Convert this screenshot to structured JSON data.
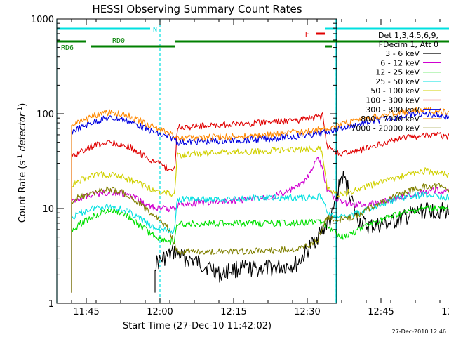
{
  "chart_data": {
    "type": "line",
    "title": "HESSI Observing Summary Count Rates",
    "xlabel": "Start Time (27-Dec-10 11:42:02)",
    "ylabel_main": "Count Rate (s",
    "ylabel_sup1": "-1",
    "ylabel_mid": " detector",
    "ylabel_sup2": "-1",
    "ylabel_end": ")",
    "yscale": "log",
    "xlim_min": [
      -3,
      54
    ],
    "ylim": [
      1,
      1000
    ],
    "x_ticks": [
      {
        "min": 3,
        "label": "11:45"
      },
      {
        "min": 18,
        "label": "12:00"
      },
      {
        "min": 33,
        "label": "12:15"
      },
      {
        "min": 48,
        "label": "12:30"
      },
      {
        "min": 63,
        "label": "12:45"
      },
      {
        "min": 78,
        "label": "13:00"
      },
      {
        "min": 93,
        "label": "13:15"
      }
    ],
    "y_ticks": [
      {
        "value": 1,
        "label": "1"
      },
      {
        "value": 10,
        "label": "10"
      },
      {
        "value": 100,
        "label": "100"
      },
      {
        "value": 1000,
        "label": "1000"
      }
    ],
    "legend_header": [
      "Det 1,3,4,5,6,9,",
      "FDecim 1, Att 0"
    ],
    "series": [
      {
        "name": "3 - 6 keV",
        "color": "#000000",
        "points": [
          [
            17,
            2.6
          ],
          [
            19,
            3
          ],
          [
            21,
            3.5
          ],
          [
            23,
            3
          ],
          [
            25,
            2.8
          ],
          [
            27,
            2.5
          ],
          [
            29,
            2.3
          ],
          [
            30,
            2
          ],
          [
            31,
            2
          ],
          [
            31.5,
            2.2
          ],
          [
            34,
            2.3
          ],
          [
            38,
            2.3
          ],
          [
            42,
            2.4
          ],
          [
            46,
            2.6
          ],
          [
            50,
            5
          ],
          [
            53,
            8
          ],
          [
            55,
            22
          ],
          [
            56,
            18
          ],
          [
            57,
            13
          ],
          [
            58,
            8
          ],
          [
            60,
            6.5
          ],
          [
            62,
            6.5
          ],
          [
            65,
            7
          ],
          [
            68,
            8
          ],
          [
            70,
            9
          ],
          [
            72,
            9.5
          ],
          [
            75,
            9.5
          ],
          [
            78,
            9
          ],
          [
            80,
            8
          ],
          [
            83,
            6
          ],
          [
            86,
            4.5
          ],
          [
            88,
            3.2
          ]
        ]
      },
      {
        "name": "6 - 12 keV",
        "color": "#d000d0",
        "points": [
          [
            0,
            12
          ],
          [
            2,
            13
          ],
          [
            4,
            14
          ],
          [
            6,
            14.5
          ],
          [
            8,
            15
          ],
          [
            10,
            14.5
          ],
          [
            12,
            13.5
          ],
          [
            14,
            12
          ],
          [
            16,
            10.5
          ],
          [
            18,
            10
          ],
          [
            20,
            10
          ],
          [
            21,
            10
          ],
          [
            21.5,
            11
          ],
          [
            26,
            11.5
          ],
          [
            31,
            11.8
          ],
          [
            36,
            12.5
          ],
          [
            41,
            13.5
          ],
          [
            44,
            15
          ],
          [
            47,
            18
          ],
          [
            49,
            25
          ],
          [
            50,
            35
          ],
          [
            51,
            28
          ],
          [
            52,
            16
          ],
          [
            54,
            12
          ],
          [
            57,
            11
          ],
          [
            60,
            11
          ],
          [
            62,
            11.5
          ],
          [
            65,
            12.5
          ],
          [
            68,
            13.5
          ],
          [
            71,
            14.5
          ],
          [
            74,
            15.5
          ],
          [
            77,
            15
          ],
          [
            80,
            14
          ],
          [
            82,
            12.5
          ],
          [
            84,
            11
          ]
        ]
      },
      {
        "name": "12 - 25 keV",
        "color": "#00e000",
        "points": [
          [
            0,
            6
          ],
          [
            2,
            7
          ],
          [
            4,
            8
          ],
          [
            6,
            9
          ],
          [
            8,
            9.5
          ],
          [
            10,
            9
          ],
          [
            12,
            8
          ],
          [
            14,
            6.5
          ],
          [
            16,
            5.5
          ],
          [
            18,
            4.8
          ],
          [
            20,
            4.5
          ],
          [
            21,
            4.5
          ],
          [
            21.5,
            6.8
          ],
          [
            30,
            7
          ],
          [
            40,
            7
          ],
          [
            46,
            7.1
          ],
          [
            51,
            7.3
          ],
          [
            52,
            6.5
          ],
          [
            55,
            5
          ],
          [
            57,
            5.5
          ],
          [
            60,
            6.5
          ],
          [
            63,
            7.5
          ],
          [
            66,
            8.5
          ],
          [
            69,
            9.2
          ],
          [
            72,
            10
          ],
          [
            75,
            10
          ],
          [
            78,
            9
          ],
          [
            80,
            8
          ],
          [
            82,
            6.5
          ],
          [
            84,
            5.5
          ]
        ]
      },
      {
        "name": "25 - 50 keV",
        "color": "#00e0e0",
        "points": [
          [
            0,
            8
          ],
          [
            2,
            9
          ],
          [
            4,
            10
          ],
          [
            6,
            10.5
          ],
          [
            8,
            10.5
          ],
          [
            10,
            10
          ],
          [
            12,
            9
          ],
          [
            14,
            7.8
          ],
          [
            16,
            6.5
          ],
          [
            18,
            6
          ],
          [
            20,
            5.8
          ],
          [
            21,
            5.8
          ],
          [
            21.5,
            12.5
          ],
          [
            30,
            12.5
          ],
          [
            40,
            13
          ],
          [
            48,
            13
          ],
          [
            51,
            13.5
          ],
          [
            52,
            9
          ],
          [
            54,
            8
          ],
          [
            57,
            8.5
          ],
          [
            60,
            9.5
          ],
          [
            63,
            11
          ],
          [
            66,
            12.5
          ],
          [
            69,
            13.5
          ],
          [
            72,
            14
          ],
          [
            75,
            13.5
          ],
          [
            78,
            12.5
          ],
          [
            80,
            11
          ],
          [
            82,
            9.5
          ],
          [
            84,
            8
          ]
        ]
      },
      {
        "name": "50 - 100 keV",
        "color": "#d0d000",
        "points": [
          [
            0,
            18
          ],
          [
            2,
            20
          ],
          [
            4,
            22
          ],
          [
            6,
            23
          ],
          [
            8,
            23
          ],
          [
            10,
            22
          ],
          [
            12,
            20
          ],
          [
            14,
            18
          ],
          [
            16,
            16
          ],
          [
            18,
            15
          ],
          [
            20,
            14.5
          ],
          [
            21,
            14.5
          ],
          [
            21.5,
            36
          ],
          [
            26,
            38
          ],
          [
            31,
            39
          ],
          [
            36,
            40
          ],
          [
            41,
            41
          ],
          [
            46,
            42
          ],
          [
            51,
            43
          ],
          [
            52,
            16
          ],
          [
            54,
            14
          ],
          [
            57,
            15
          ],
          [
            60,
            17
          ],
          [
            63,
            19
          ],
          [
            66,
            21
          ],
          [
            69,
            23
          ],
          [
            72,
            25
          ],
          [
            75,
            24
          ],
          [
            78,
            22
          ],
          [
            80,
            20
          ],
          [
            82,
            18
          ],
          [
            84,
            16
          ]
        ]
      },
      {
        "name": "100 - 300 keV",
        "color": "#e00000",
        "points": [
          [
            0,
            35
          ],
          [
            2,
            40
          ],
          [
            4,
            45
          ],
          [
            6,
            48
          ],
          [
            8,
            50
          ],
          [
            10,
            48
          ],
          [
            12,
            44
          ],
          [
            14,
            38
          ],
          [
            16,
            33
          ],
          [
            18,
            29
          ],
          [
            20,
            26
          ],
          [
            21,
            25
          ],
          [
            21.5,
            72
          ],
          [
            26,
            74
          ],
          [
            31,
            76
          ],
          [
            36,
            78
          ],
          [
            41,
            82
          ],
          [
            46,
            86
          ],
          [
            51,
            92
          ],
          [
            51.2,
            100
          ],
          [
            52,
            44
          ],
          [
            55,
            38
          ],
          [
            58,
            40
          ],
          [
            61,
            45
          ],
          [
            64,
            50
          ],
          [
            67,
            55
          ],
          [
            70,
            58
          ],
          [
            73,
            60
          ],
          [
            76,
            58
          ],
          [
            79,
            54
          ],
          [
            82,
            48
          ],
          [
            84,
            43
          ]
        ]
      },
      {
        "name": "300 - 800 keV",
        "color": "#0000e0",
        "points": [
          [
            0,
            65
          ],
          [
            2,
            72
          ],
          [
            4,
            80
          ],
          [
            6,
            87
          ],
          [
            8,
            90
          ],
          [
            10,
            88
          ],
          [
            12,
            82
          ],
          [
            14,
            74
          ],
          [
            16,
            66
          ],
          [
            18,
            60
          ],
          [
            20,
            56
          ],
          [
            21,
            55
          ],
          [
            21.5,
            50
          ],
          [
            26,
            51
          ],
          [
            31,
            52
          ],
          [
            36,
            53
          ],
          [
            41,
            55
          ],
          [
            46,
            58
          ],
          [
            51,
            62
          ],
          [
            53,
            67
          ],
          [
            56,
            72
          ],
          [
            59,
            78
          ],
          [
            62,
            85
          ],
          [
            65,
            90
          ],
          [
            68,
            95
          ],
          [
            71,
            100
          ],
          [
            74,
            98
          ],
          [
            77,
            92
          ],
          [
            80,
            85
          ],
          [
            82,
            78
          ],
          [
            84,
            70
          ]
        ]
      },
      {
        "name": "800 - 7000 keV",
        "color": "#ff8800",
        "points": [
          [
            0,
            75
          ],
          [
            2,
            83
          ],
          [
            4,
            92
          ],
          [
            6,
            100
          ],
          [
            8,
            103
          ],
          [
            10,
            100
          ],
          [
            12,
            93
          ],
          [
            14,
            84
          ],
          [
            16,
            75
          ],
          [
            18,
            68
          ],
          [
            20,
            62
          ],
          [
            21,
            60
          ],
          [
            21.5,
            55
          ],
          [
            26,
            56
          ],
          [
            31,
            57
          ],
          [
            36,
            58
          ],
          [
            41,
            60
          ],
          [
            46,
            64
          ],
          [
            51,
            68
          ],
          [
            53,
            73
          ],
          [
            56,
            79
          ],
          [
            59,
            86
          ],
          [
            62,
            93
          ],
          [
            65,
            100
          ],
          [
            68,
            105
          ],
          [
            71,
            110
          ],
          [
            74,
            108
          ],
          [
            77,
            102
          ],
          [
            80,
            94
          ],
          [
            82,
            86
          ],
          [
            84,
            78
          ]
        ]
      },
      {
        "name": "7000 - 20000 keV",
        "color": "#808000",
        "points": [
          [
            0,
            12
          ],
          [
            2,
            13.5
          ],
          [
            4,
            14.5
          ],
          [
            6,
            15.5
          ],
          [
            8,
            16
          ],
          [
            10,
            15
          ],
          [
            12,
            13
          ],
          [
            14,
            11
          ],
          [
            16,
            9
          ],
          [
            18,
            7.5
          ],
          [
            20,
            6
          ],
          [
            21,
            4
          ],
          [
            22,
            3.5
          ],
          [
            30,
            3.5
          ],
          [
            40,
            3.6
          ],
          [
            46,
            3.7
          ],
          [
            50,
            4.5
          ],
          [
            52,
            8
          ],
          [
            54,
            7.5
          ],
          [
            57,
            8
          ],
          [
            60,
            9.5
          ],
          [
            63,
            11.5
          ],
          [
            66,
            13.5
          ],
          [
            69,
            15.5
          ],
          [
            72,
            17
          ],
          [
            75,
            17
          ],
          [
            78,
            15
          ],
          [
            80,
            13
          ],
          [
            82,
            11
          ],
          [
            84,
            9.5
          ]
        ]
      }
    ],
    "flags": [
      {
        "name": "Night",
        "label": "N",
        "color": "#00e0e0",
        "y": 41,
        "segments": [
          [
            -3,
            16
          ],
          [
            82,
            94.7
          ]
        ]
      },
      {
        "name": "Flare",
        "label": "F",
        "color": "#e00000",
        "y": 48,
        "segments": [
          [
            49.8,
            53
          ]
        ]
      },
      {
        "name": "RD0",
        "label": "RD0",
        "color": "#008000",
        "y": 59,
        "segments": [
          [
            -3,
            3
          ],
          [
            21,
            53
          ],
          [
            86,
            94.7
          ]
        ]
      },
      {
        "name": "RD6",
        "label": "RD6",
        "color": "#008000",
        "y": 66,
        "segments": [
          [
            4,
            21
          ],
          [
            53,
            84
          ]
        ]
      }
    ],
    "vlines": [
      {
        "min": -3,
        "color": "#00e0e0",
        "style": "solid"
      },
      {
        "min": 18,
        "color": "#00e0e0",
        "style": "dashed"
      },
      {
        "min": 82,
        "color": "#00e0e0",
        "style": "solid"
      },
      {
        "min": 96,
        "color": "#00e0e0",
        "style": "dashed"
      }
    ],
    "timestamp": "27-Dec-2010 12:46"
  }
}
